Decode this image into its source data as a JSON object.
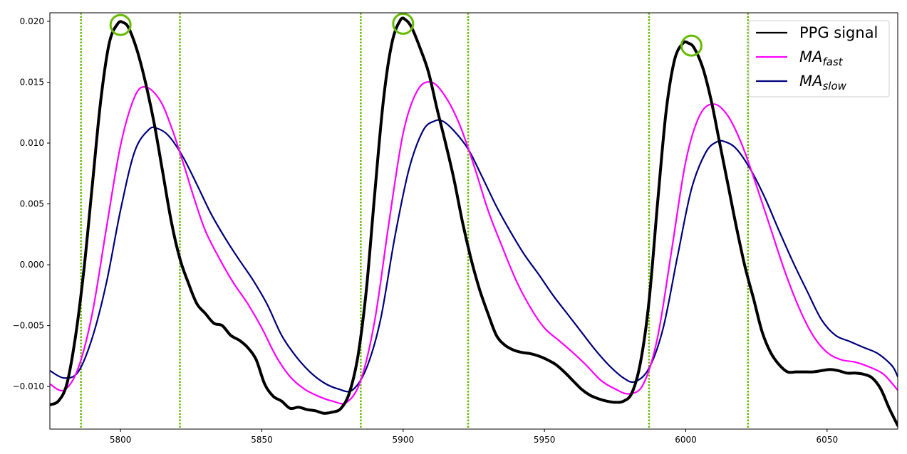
{
  "chart_data": {
    "type": "line",
    "title": "",
    "xlabel": "",
    "ylabel": "",
    "xlim": [
      5775,
      6075
    ],
    "ylim": [
      -0.0135,
      0.0207
    ],
    "grid": false,
    "legend_position": "top-right",
    "x_ticks": [
      5800,
      5850,
      5900,
      5950,
      6000,
      6050
    ],
    "x_tick_labels": [
      "5800",
      "5850",
      "5900",
      "5950",
      "6000",
      "6050"
    ],
    "y_ticks": [
      -0.01,
      -0.005,
      0.0,
      0.005,
      0.01,
      0.015,
      0.02
    ],
    "y_tick_labels": [
      "−0.010",
      "−0.005",
      "0.000",
      "0.005",
      "0.010",
      "0.015",
      "0.020"
    ],
    "series": [
      {
        "name": "PPG signal",
        "color": "#000000",
        "x": [
          5775,
          5778,
          5781,
          5784,
          5787,
          5790,
          5793,
          5796,
          5799,
          5801,
          5803,
          5806,
          5809,
          5812,
          5815,
          5818,
          5821,
          5824,
          5827,
          5830,
          5833,
          5836,
          5839,
          5842,
          5845,
          5848,
          5851,
          5854,
          5857,
          5860,
          5863,
          5866,
          5869,
          5872,
          5875,
          5878,
          5881,
          5884,
          5887,
          5890,
          5893,
          5896,
          5899,
          5901,
          5903,
          5906,
          5909,
          5912,
          5915,
          5918,
          5921,
          5924,
          5927,
          5930,
          5933,
          5936,
          5939,
          5942,
          5945,
          5948,
          5951,
          5954,
          5957,
          5960,
          5963,
          5966,
          5969,
          5972,
          5975,
          5978,
          5981,
          5984,
          5987,
          5990,
          5993,
          5996,
          5999,
          6001,
          6003,
          6006,
          6009,
          6012,
          6015,
          6018,
          6021,
          6024,
          6027,
          6030,
          6033,
          6036,
          6039,
          6042,
          6045,
          6048,
          6051,
          6054,
          6057,
          6060,
          6063,
          6066,
          6069,
          6072,
          6075
        ],
        "values": [
          -0.0115,
          -0.0112,
          -0.0098,
          -0.006,
          -0.0005,
          0.0065,
          0.0135,
          0.0182,
          0.0198,
          0.0199,
          0.0194,
          0.0175,
          0.0148,
          0.0115,
          0.0075,
          0.0035,
          0.0005,
          -0.0015,
          -0.0032,
          -0.004,
          -0.0048,
          -0.005,
          -0.0058,
          -0.0062,
          -0.0068,
          -0.0078,
          -0.0098,
          -0.0108,
          -0.0112,
          -0.0118,
          -0.0117,
          -0.0119,
          -0.012,
          -0.0122,
          -0.0121,
          -0.0118,
          -0.0105,
          -0.0075,
          -0.002,
          0.006,
          0.0135,
          0.0182,
          0.0201,
          0.0201,
          0.0195,
          0.0178,
          0.0158,
          0.0128,
          0.01,
          0.007,
          0.0035,
          0.0005,
          -0.002,
          -0.004,
          -0.0058,
          -0.0066,
          -0.007,
          -0.0072,
          -0.0073,
          -0.0075,
          -0.0078,
          -0.0082,
          -0.0088,
          -0.0095,
          -0.0102,
          -0.0107,
          -0.011,
          -0.0112,
          -0.0113,
          -0.0112,
          -0.0105,
          -0.008,
          -0.003,
          0.005,
          0.0125,
          0.0168,
          0.0182,
          0.0182,
          0.0178,
          0.0162,
          0.0135,
          0.01,
          0.0065,
          0.003,
          -0.0002,
          -0.0028,
          -0.0055,
          -0.0072,
          -0.0082,
          -0.0088,
          -0.0088,
          -0.0088,
          -0.0088,
          -0.0087,
          -0.0086,
          -0.0087,
          -0.0089,
          -0.0089,
          -0.009,
          -0.0093,
          -0.0102,
          -0.0118,
          -0.0132
        ]
      },
      {
        "name": "MA_fast",
        "color": "#ff00ff",
        "x": [
          5775,
          5780,
          5785,
          5790,
          5795,
          5800,
          5805,
          5809,
          5814,
          5818,
          5822,
          5826,
          5830,
          5835,
          5840,
          5845,
          5850,
          5855,
          5860,
          5865,
          5870,
          5875,
          5880,
          5885,
          5890,
          5895,
          5900,
          5905,
          5910,
          5915,
          5920,
          5925,
          5930,
          5935,
          5940,
          5945,
          5950,
          5955,
          5960,
          5965,
          5970,
          5975,
          5980,
          5985,
          5990,
          5995,
          6000,
          6005,
          6010,
          6015,
          6020,
          6025,
          6030,
          6035,
          6040,
          6045,
          6050,
          6055,
          6060,
          6065,
          6070,
          6075
        ],
        "values": [
          -0.0098,
          -0.0103,
          -0.0085,
          -0.004,
          0.003,
          0.0098,
          0.0138,
          0.0146,
          0.0135,
          0.0113,
          0.0085,
          0.0055,
          0.0028,
          0.0005,
          -0.0015,
          -0.0032,
          -0.0052,
          -0.0075,
          -0.0092,
          -0.0102,
          -0.0108,
          -0.0112,
          -0.0113,
          -0.0095,
          -0.0045,
          0.0035,
          0.0108,
          0.0143,
          0.015,
          0.0138,
          0.0115,
          0.0082,
          0.0045,
          0.0015,
          -0.0013,
          -0.0035,
          -0.0052,
          -0.0062,
          -0.0072,
          -0.0083,
          -0.0095,
          -0.0102,
          -0.0106,
          -0.0098,
          -0.006,
          0.0012,
          0.0085,
          0.0123,
          0.0132,
          0.0122,
          0.0098,
          0.0065,
          0.003,
          -0.0005,
          -0.0035,
          -0.0058,
          -0.0072,
          -0.0078,
          -0.008,
          -0.0084,
          -0.009,
          -0.0103
        ]
      },
      {
        "name": "MA_slow",
        "color": "#00007d",
        "x": [
          5775,
          5780,
          5785,
          5790,
          5795,
          5800,
          5805,
          5810,
          5813,
          5817,
          5822,
          5827,
          5832,
          5837,
          5842,
          5847,
          5852,
          5857,
          5862,
          5867,
          5872,
          5877,
          5882,
          5887,
          5892,
          5897,
          5902,
          5907,
          5911,
          5914,
          5918,
          5923,
          5928,
          5933,
          5938,
          5943,
          5948,
          5953,
          5958,
          5963,
          5968,
          5973,
          5978,
          5982,
          5987,
          5992,
          5997,
          6002,
          6007,
          6011,
          6014,
          6018,
          6023,
          6028,
          6033,
          6038,
          6043,
          6048,
          6053,
          6058,
          6063,
          6068,
          6073,
          6075
        ],
        "values": [
          -0.0087,
          -0.0093,
          -0.0088,
          -0.006,
          -0.0015,
          0.0045,
          0.0093,
          0.0111,
          0.0112,
          0.0106,
          0.0089,
          0.0066,
          0.0042,
          0.0022,
          0.0004,
          -0.0013,
          -0.0033,
          -0.0058,
          -0.0075,
          -0.0088,
          -0.0097,
          -0.0102,
          -0.0103,
          -0.0085,
          -0.0045,
          0.0022,
          0.0078,
          0.011,
          0.0118,
          0.0118,
          0.011,
          0.0095,
          0.0072,
          0.0048,
          0.0027,
          0.0008,
          -0.0008,
          -0.0025,
          -0.004,
          -0.0055,
          -0.007,
          -0.0083,
          -0.0093,
          -0.0096,
          -0.0085,
          -0.0052,
          0.0006,
          0.0062,
          0.0092,
          0.0101,
          0.0101,
          0.0095,
          0.0078,
          0.0055,
          0.0028,
          0.0002,
          -0.0022,
          -0.0045,
          -0.0058,
          -0.0063,
          -0.0068,
          -0.0073,
          -0.0083,
          -0.0092
        ]
      }
    ],
    "vertical_markers": {
      "color": "#66bb00",
      "x": [
        5786,
        5821,
        5885,
        5923,
        5987,
        6022
      ]
    },
    "peak_markers": {
      "color": "#66bb00",
      "points": [
        {
          "x": 5800,
          "y": 0.0197
        },
        {
          "x": 5900,
          "y": 0.0198
        },
        {
          "x": 6002,
          "y": 0.018
        }
      ]
    },
    "legend": [
      {
        "label": "PPG signal",
        "color": "#000000"
      },
      {
        "label_main": "MA",
        "label_sub": "fast",
        "color": "#ff00ff"
      },
      {
        "label_main": "MA",
        "label_sub": "slow",
        "color": "#00007d"
      }
    ]
  }
}
